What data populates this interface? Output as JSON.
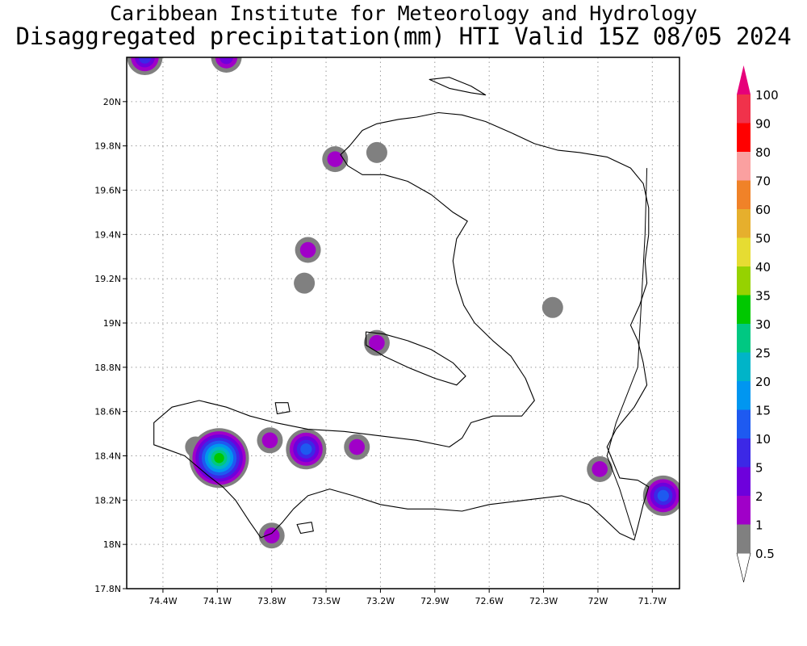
{
  "header": {
    "title_line_1": "Caribbean Institute for Meteorology and Hydrology",
    "title_line_2": "Disaggregated precipitation(mm) HTI Valid 15Z 08/05 2024"
  },
  "map": {
    "lon_range": [
      -74.6,
      -71.55
    ],
    "lat_range": [
      17.8,
      20.2
    ],
    "x_ticks": [
      {
        "value": -74.4,
        "label": "74.4W"
      },
      {
        "value": -74.1,
        "label": "74.1W"
      },
      {
        "value": -73.8,
        "label": "73.8W"
      },
      {
        "value": -73.5,
        "label": "73.5W"
      },
      {
        "value": -73.2,
        "label": "73.2W"
      },
      {
        "value": -72.9,
        "label": "72.9W"
      },
      {
        "value": -72.6,
        "label": "72.6W"
      },
      {
        "value": -72.3,
        "label": "72.3W"
      },
      {
        "value": -72.0,
        "label": "72W"
      },
      {
        "value": -71.7,
        "label": "71.7W"
      }
    ],
    "y_ticks": [
      {
        "value": 17.8,
        "label": "17.8N"
      },
      {
        "value": 18.0,
        "label": "18N"
      },
      {
        "value": 18.2,
        "label": "18.2N"
      },
      {
        "value": 18.4,
        "label": "18.4N"
      },
      {
        "value": 18.6,
        "label": "18.6N"
      },
      {
        "value": 18.8,
        "label": "18.8N"
      },
      {
        "value": 19.0,
        "label": "19N"
      },
      {
        "value": 19.2,
        "label": "19.2N"
      },
      {
        "value": 19.4,
        "label": "19.4N"
      },
      {
        "value": 19.6,
        "label": "19.6N"
      },
      {
        "value": 19.8,
        "label": "19.8N"
      },
      {
        "value": 20.0,
        "label": "20N"
      }
    ],
    "grid": true,
    "precip_blobs": [
      {
        "lon": -74.5,
        "lat": 20.2,
        "peak_mm": 10
      },
      {
        "lon": -74.05,
        "lat": 20.2,
        "peak_mm": 5
      },
      {
        "lon": -73.45,
        "lat": 19.74,
        "peak_mm": 2
      },
      {
        "lon": -73.22,
        "lat": 19.77,
        "peak_mm": 0.5
      },
      {
        "lon": -73.6,
        "lat": 19.33,
        "peak_mm": 2
      },
      {
        "lon": -73.62,
        "lat": 19.18,
        "peak_mm": 0.5
      },
      {
        "lon": -73.22,
        "lat": 18.91,
        "peak_mm": 2
      },
      {
        "lon": -72.25,
        "lat": 19.07,
        "peak_mm": 0.5
      },
      {
        "lon": -74.22,
        "lat": 18.44,
        "peak_mm": 0.5
      },
      {
        "lon": -74.09,
        "lat": 18.39,
        "peak_mm": 35
      },
      {
        "lon": -73.81,
        "lat": 18.47,
        "peak_mm": 2
      },
      {
        "lon": -73.61,
        "lat": 18.43,
        "peak_mm": 15
      },
      {
        "lon": -73.33,
        "lat": 18.44,
        "peak_mm": 2
      },
      {
        "lon": -73.8,
        "lat": 18.04,
        "peak_mm": 2
      },
      {
        "lon": -71.99,
        "lat": 18.34,
        "peak_mm": 2
      },
      {
        "lon": -71.64,
        "lat": 18.22,
        "peak_mm": 15
      }
    ]
  },
  "legend": {
    "levels": [
      {
        "label": "0.5",
        "color": "#ffffff"
      },
      {
        "label": "1",
        "color": "#808080"
      },
      {
        "label": "2",
        "color": "#a000c8"
      },
      {
        "label": "5",
        "color": "#6e00dc"
      },
      {
        "label": "10",
        "color": "#3c28e6"
      },
      {
        "label": "15",
        "color": "#1e5af0"
      },
      {
        "label": "20",
        "color": "#0096f0"
      },
      {
        "label": "25",
        "color": "#00b4c8"
      },
      {
        "label": "30",
        "color": "#00c882"
      },
      {
        "label": "35",
        "color": "#00c800"
      },
      {
        "label": "40",
        "color": "#96d200"
      },
      {
        "label": "50",
        "color": "#e6dc32"
      },
      {
        "label": "60",
        "color": "#e6af2d"
      },
      {
        "label": "70",
        "color": "#f08228"
      },
      {
        "label": "80",
        "color": "#faa0a0"
      },
      {
        "label": "90",
        "color": "#ff0000"
      },
      {
        "label": "100",
        "color": "#f0324b"
      }
    ],
    "top_arrow_color": "#e6007a"
  }
}
